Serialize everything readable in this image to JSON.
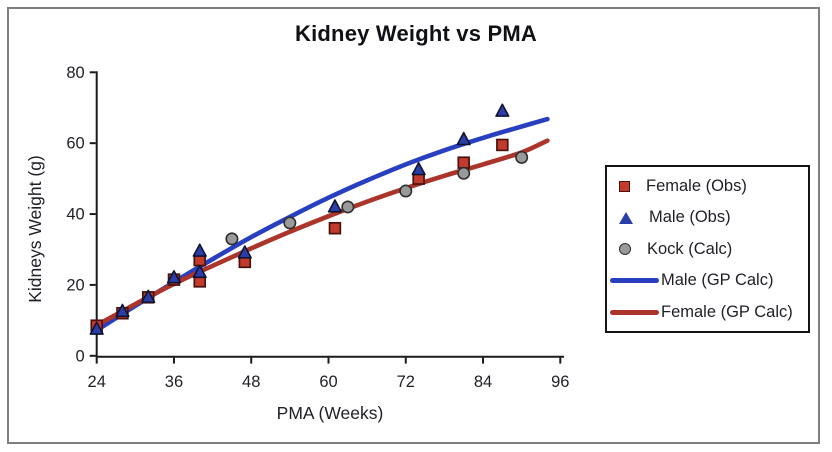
{
  "window": {
    "background_color": "#ffffff",
    "frame_border_color": "#7f7f7f"
  },
  "chart_data": {
    "type": "scatter",
    "title": "Kidney Weight vs PMA",
    "xlabel": "PMA (Weeks)",
    "ylabel": "Kidneys Weight (g)",
    "xlim": [
      24,
      96
    ],
    "ylim": [
      0,
      80
    ],
    "x_ticks": [
      24,
      36,
      48,
      60,
      72,
      84,
      96
    ],
    "y_ticks": [
      0,
      20,
      40,
      60,
      80
    ],
    "grid": false,
    "legend_position": "right",
    "axis_color": "#1a1a1a",
    "tick_label_color": "#1e2026",
    "title_color": "#0f1115",
    "series": [
      {
        "name": "Female (Obs)",
        "type": "scatter",
        "marker": "square",
        "color": "#c23b2c",
        "border_color": "#49120d",
        "points": [
          [
            24,
            8.5
          ],
          [
            28,
            12
          ],
          [
            32,
            16.5
          ],
          [
            36,
            21.5
          ],
          [
            40,
            21
          ],
          [
            40,
            27
          ],
          [
            47,
            26.5
          ],
          [
            61,
            36
          ],
          [
            74,
            50
          ],
          [
            81,
            54.5
          ],
          [
            87,
            59.5
          ]
        ]
      },
      {
        "name": "Male (Obs)",
        "type": "scatter",
        "marker": "triangle",
        "color": "#2b3da8",
        "border_color": "#0f142e",
        "points": [
          [
            24,
            7.5
          ],
          [
            28,
            12.5
          ],
          [
            32,
            16.5
          ],
          [
            36,
            22
          ],
          [
            40,
            23.5
          ],
          [
            40,
            29.5
          ],
          [
            47,
            29
          ],
          [
            61,
            42
          ],
          [
            74,
            52.5
          ],
          [
            81,
            61
          ],
          [
            87,
            69
          ]
        ]
      },
      {
        "name": "Kock (Calc)",
        "type": "scatter",
        "marker": "circle",
        "color": "#9a9a9a",
        "border_color": "#2e2e2e",
        "points": [
          [
            45,
            33
          ],
          [
            54,
            37.5
          ],
          [
            63,
            42
          ],
          [
            72,
            46.5
          ],
          [
            81,
            51.5
          ],
          [
            90,
            56
          ]
        ]
      },
      {
        "name": "Male (GP Calc)",
        "type": "line",
        "color": "#2840c0",
        "points": [
          [
            24,
            7.2
          ],
          [
            30,
            14.1
          ],
          [
            36,
            20.8
          ],
          [
            42,
            27.3
          ],
          [
            48,
            33.5
          ],
          [
            54,
            39.2
          ],
          [
            60,
            44.6
          ],
          [
            66,
            49.5
          ],
          [
            72,
            54
          ],
          [
            78,
            58
          ],
          [
            84,
            61.5
          ],
          [
            90,
            64.7
          ],
          [
            94,
            66.8
          ]
        ]
      },
      {
        "name": "Female (GP Calc)",
        "type": "line",
        "color": "#ac352b",
        "points": [
          [
            24,
            8.6
          ],
          [
            30,
            14.6
          ],
          [
            36,
            20.3
          ],
          [
            42,
            25.4
          ],
          [
            48,
            30.3
          ],
          [
            54,
            35
          ],
          [
            60,
            39.4
          ],
          [
            66,
            43.5
          ],
          [
            72,
            47.3
          ],
          [
            78,
            50.8
          ],
          [
            84,
            54
          ],
          [
            90,
            57.4
          ],
          [
            94,
            60.7
          ]
        ]
      }
    ]
  }
}
